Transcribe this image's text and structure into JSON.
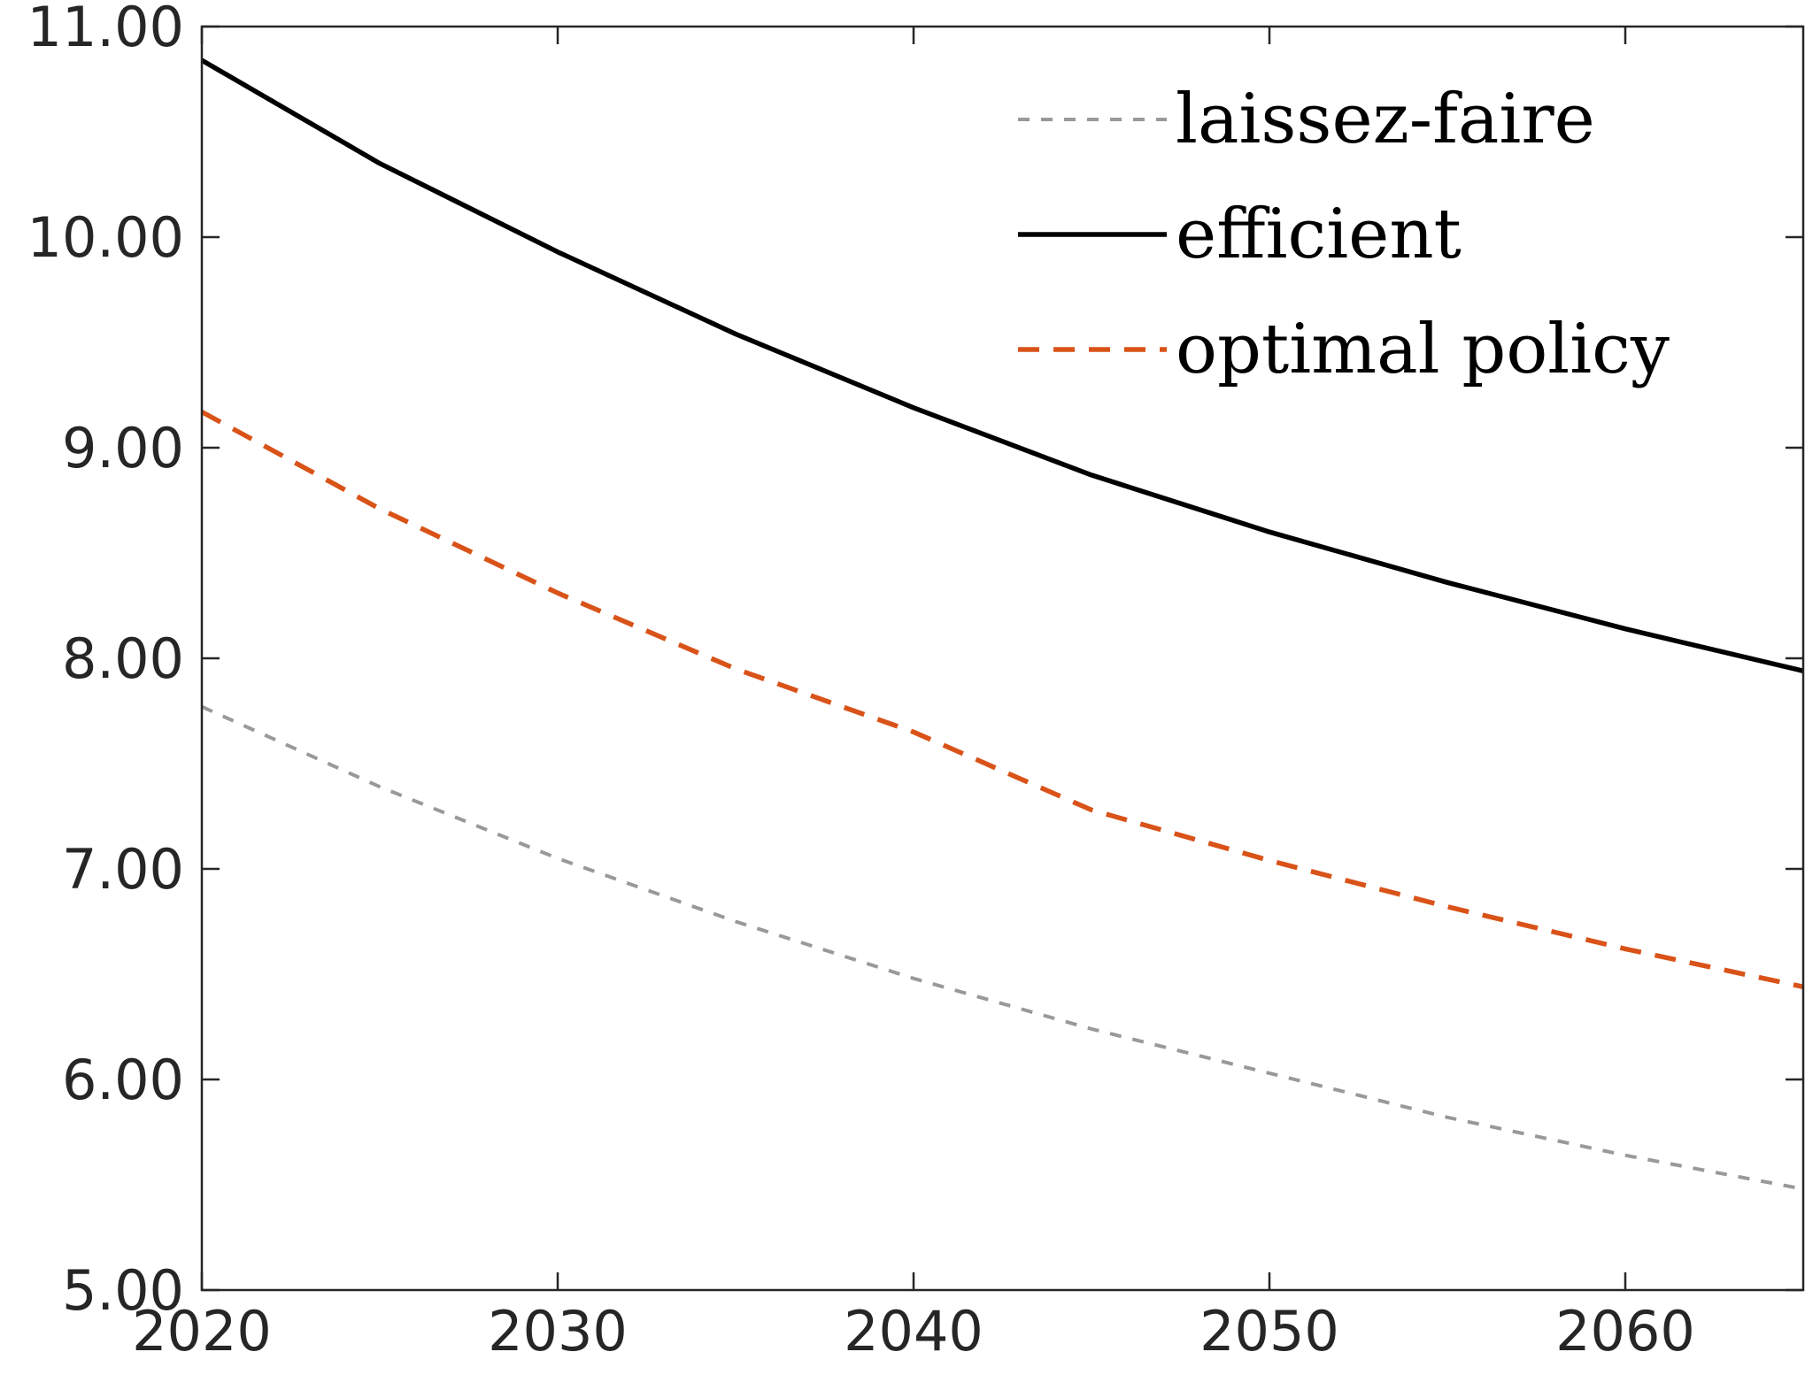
{
  "chart_data": {
    "type": "line",
    "title": "",
    "xlabel": "",
    "ylabel": "",
    "xlim": [
      2020,
      2065
    ],
    "ylim": [
      5,
      11
    ],
    "x_ticks": [
      2020,
      2030,
      2040,
      2050,
      2060
    ],
    "x_tick_labels": [
      "2020",
      "2030",
      "2040",
      "2050",
      "2060"
    ],
    "y_ticks": [
      5,
      6,
      7,
      8,
      9,
      10,
      11
    ],
    "y_tick_labels": [
      "5.00",
      "6.00",
      "7.00",
      "8.00",
      "9.00",
      "10.00",
      "11.00"
    ],
    "grid": false,
    "legend_position": "top-right",
    "x": [
      2020,
      2025,
      2030,
      2035,
      2040,
      2045,
      2050,
      2055,
      2060,
      2065
    ],
    "series": [
      {
        "name": "laissez-faire",
        "color": "#999999",
        "style": "dashed",
        "values": [
          7.77,
          7.39,
          7.05,
          6.75,
          6.48,
          6.24,
          6.03,
          5.82,
          5.64,
          5.48
        ]
      },
      {
        "name": "efficient",
        "color": "#000000",
        "style": "solid",
        "values": [
          10.84,
          10.35,
          9.93,
          9.54,
          9.19,
          8.87,
          8.6,
          8.36,
          8.14,
          7.94
        ]
      },
      {
        "name": "optimal policy",
        "color": "#d95319",
        "style": "dashed",
        "values": [
          9.17,
          8.71,
          8.31,
          7.95,
          7.65,
          7.28,
          7.04,
          6.82,
          6.62,
          6.44
        ]
      }
    ]
  }
}
